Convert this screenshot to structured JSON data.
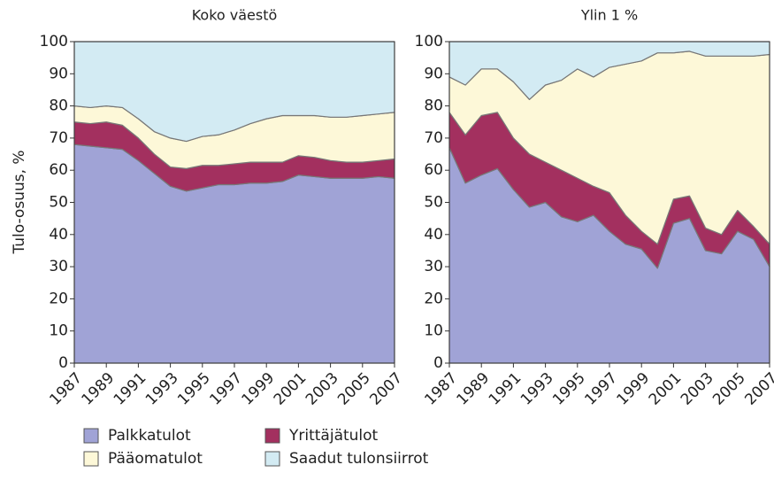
{
  "y_label": "Tulo-osuus, %",
  "chart_data": [
    {
      "type": "area",
      "title": "Koko väestö",
      "x": [
        1987,
        1988,
        1989,
        1990,
        1991,
        1992,
        1993,
        1994,
        1995,
        1996,
        1997,
        1998,
        1999,
        2000,
        2001,
        2002,
        2003,
        2004,
        2005,
        2006,
        2007
      ],
      "xlim": [
        1987,
        2007
      ],
      "xticks": [
        1987,
        1989,
        1991,
        1993,
        1995,
        1997,
        1999,
        2001,
        2003,
        2005,
        2007
      ],
      "ylim": [
        0,
        100
      ],
      "yticks": [
        0,
        10,
        20,
        30,
        40,
        50,
        60,
        70,
        80,
        90,
        100
      ],
      "series": [
        {
          "name": "Palkkatulot",
          "color": "#a0a3d6",
          "values": [
            68,
            67.5,
            67,
            66.5,
            63,
            59,
            55,
            53.5,
            54.5,
            55.5,
            55.5,
            56,
            56,
            56.5,
            58.5,
            58,
            57.5,
            57.5,
            57.5,
            58,
            57.5
          ]
        },
        {
          "name": "Yrittäjätulot",
          "color": "#a3305f",
          "values": [
            7,
            7,
            8,
            7.5,
            7,
            6,
            6,
            7,
            7,
            6,
            6.5,
            6.5,
            6.5,
            6,
            6,
            6,
            5.5,
            5,
            5,
            5,
            6
          ]
        },
        {
          "name": "Pääomatulot",
          "color": "#fdf8d8",
          "values": [
            5,
            5,
            5,
            5.5,
            6,
            7,
            9,
            8.5,
            9,
            9.5,
            10.5,
            12,
            13.5,
            14.5,
            12.5,
            13,
            13.5,
            14,
            14.5,
            14.5,
            14.5
          ]
        },
        {
          "name": "Saadut tulonsiirrot",
          "color": "#d3ebf3",
          "values": [
            20,
            20.5,
            20,
            20.5,
            24,
            28,
            30,
            31,
            29.5,
            29,
            27.5,
            25.5,
            24,
            23,
            23,
            23,
            23.5,
            23.5,
            23,
            22.5,
            22
          ]
        }
      ]
    },
    {
      "type": "area",
      "title": "Ylin 1 %",
      "x": [
        1987,
        1988,
        1989,
        1990,
        1991,
        1992,
        1993,
        1994,
        1995,
        1996,
        1997,
        1998,
        1999,
        2000,
        2001,
        2002,
        2003,
        2004,
        2005,
        2006,
        2007
      ],
      "xlim": [
        1987,
        2007
      ],
      "xticks": [
        1987,
        1989,
        1991,
        1993,
        1995,
        1997,
        1999,
        2001,
        2003,
        2005,
        2007
      ],
      "ylim": [
        0,
        100
      ],
      "yticks": [
        0,
        10,
        20,
        30,
        40,
        50,
        60,
        70,
        80,
        90,
        100
      ],
      "series": [
        {
          "name": "Palkkatulot",
          "color": "#a0a3d6",
          "values": [
            67,
            56,
            58.5,
            60.5,
            54,
            48.5,
            50,
            45.5,
            44,
            46,
            41,
            37,
            35.5,
            29.5,
            43.5,
            45,
            35,
            34,
            41,
            38.5,
            30
          ]
        },
        {
          "name": "Yrittäjätulot",
          "color": "#a3305f",
          "values": [
            11,
            15,
            18.5,
            17.5,
            16,
            16.5,
            12.5,
            14.5,
            13.5,
            9,
            12,
            9,
            5.5,
            7.5,
            7.5,
            7,
            7,
            6,
            6.5,
            4,
            7
          ]
        },
        {
          "name": "Pääomatulot",
          "color": "#fdf8d8",
          "values": [
            11,
            15.5,
            14.5,
            13.5,
            17.5,
            17,
            24,
            28,
            34,
            34,
            39,
            47,
            53,
            59.5,
            45.5,
            45,
            53.5,
            55.5,
            48,
            53,
            59
          ]
        },
        {
          "name": "Saadut tulonsiirrot",
          "color": "#d3ebf3",
          "values": [
            11,
            13.5,
            8.5,
            8.5,
            12.5,
            18,
            13.5,
            12,
            8.5,
            11,
            8,
            7,
            6,
            3.5,
            3.5,
            3,
            4.5,
            4.5,
            4.5,
            4.5,
            4
          ]
        }
      ]
    }
  ]
}
